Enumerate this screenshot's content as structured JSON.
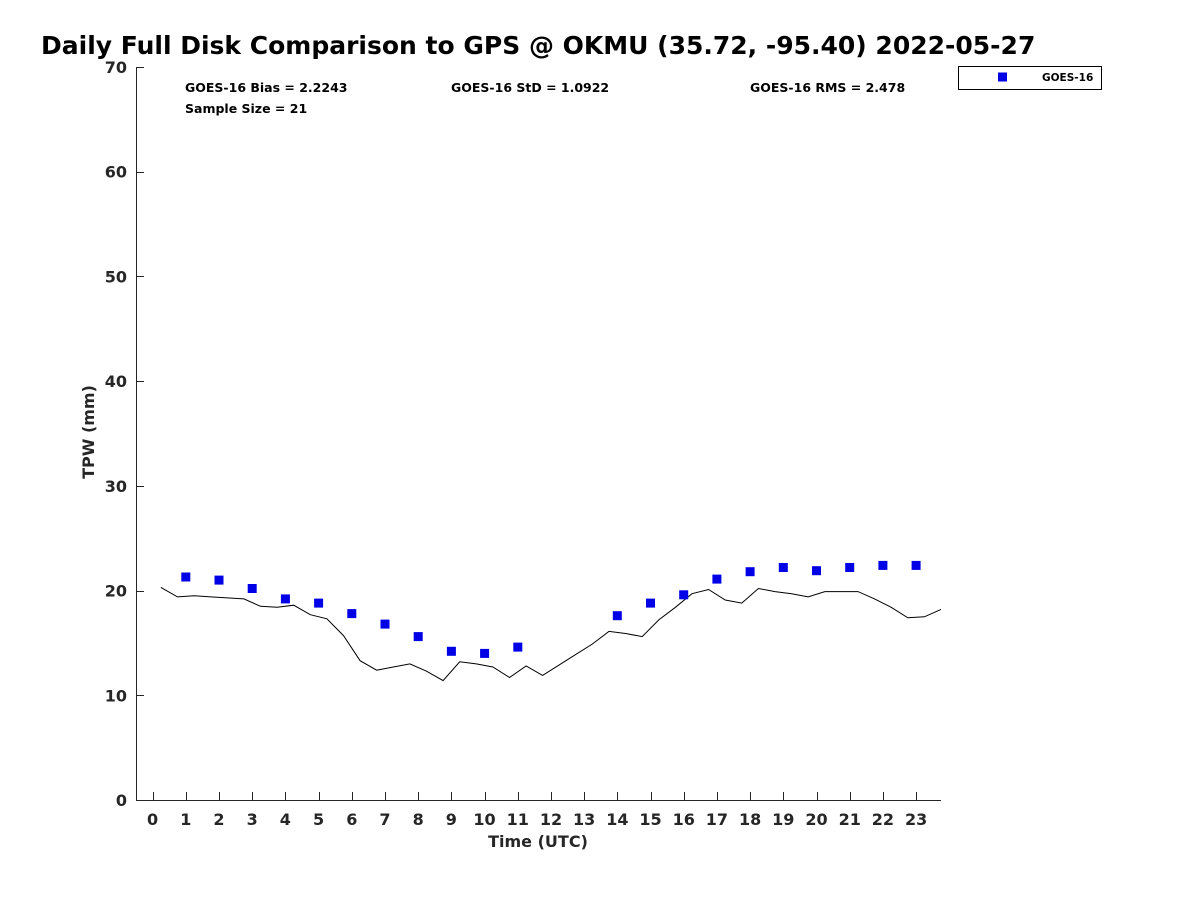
{
  "chart_data": {
    "type": "scatter",
    "title": "Daily Full Disk Comparison to GPS @ OKMU (35.72, -95.40) 2022-05-27",
    "xlabel": "Time (UTC)",
    "ylabel": "TPW (mm)",
    "xlim": [
      -0.5,
      23.75
    ],
    "ylim": [
      0,
      70
    ],
    "x_ticks": [
      0,
      1,
      2,
      3,
      4,
      5,
      6,
      7,
      8,
      9,
      10,
      11,
      12,
      13,
      14,
      15,
      16,
      17,
      18,
      19,
      20,
      21,
      22,
      23
    ],
    "y_ticks": [
      0,
      10,
      20,
      30,
      40,
      50,
      60,
      70
    ],
    "grid": false,
    "legend_position": "outside-top-right",
    "stats": {
      "bias": "GOES-16 Bias = 2.2243",
      "std": "GOES-16 StD = 1.0922",
      "rms": "GOES-16 RMS = 2.478",
      "sample_size": "Sample Size = 21"
    },
    "series": [
      {
        "name": "GOES-16",
        "kind": "scatter",
        "marker": "square",
        "color": "#0000e6",
        "x": [
          1,
          2,
          3,
          4,
          5,
          6,
          7,
          8,
          9,
          10,
          11,
          14,
          15,
          16,
          17,
          18,
          19,
          20,
          21,
          22,
          23
        ],
        "y": [
          21.3,
          21.0,
          20.2,
          19.2,
          18.8,
          17.8,
          16.8,
          15.6,
          14.2,
          14.0,
          14.6,
          17.6,
          18.8,
          19.6,
          21.1,
          21.8,
          22.2,
          21.9,
          22.2,
          22.4,
          22.4
        ]
      },
      {
        "kind": "line",
        "color": "#000000",
        "x": [
          0.25,
          0.75,
          1.25,
          1.75,
          2.25,
          2.75,
          3.25,
          3.75,
          4.25,
          4.75,
          5.25,
          5.75,
          6.25,
          6.75,
          7.25,
          7.75,
          8.25,
          8.75,
          9.25,
          9.75,
          10.25,
          10.75,
          11.25,
          11.75,
          12.25,
          12.75,
          13.25,
          13.75,
          14.25,
          14.75,
          15.25,
          15.75,
          16.25,
          16.75,
          17.25,
          17.75,
          18.25,
          18.75,
          19.25,
          19.75,
          20.25,
          20.75,
          21.25,
          21.75,
          22.25,
          22.75,
          23.25,
          23.75
        ],
        "y": [
          20.3,
          19.4,
          19.5,
          19.4,
          19.3,
          19.2,
          18.5,
          18.4,
          18.6,
          17.7,
          17.3,
          15.7,
          13.3,
          12.4,
          12.7,
          13.0,
          12.3,
          11.4,
          13.2,
          13.0,
          12.7,
          11.7,
          12.8,
          11.9,
          12.9,
          13.9,
          14.9,
          16.1,
          15.9,
          15.6,
          17.2,
          18.4,
          19.7,
          20.1,
          19.1,
          18.8,
          20.2,
          19.9,
          19.7,
          19.4,
          19.9,
          19.9,
          19.9,
          19.2,
          18.4,
          17.4,
          17.5,
          18.2
        ]
      }
    ]
  }
}
